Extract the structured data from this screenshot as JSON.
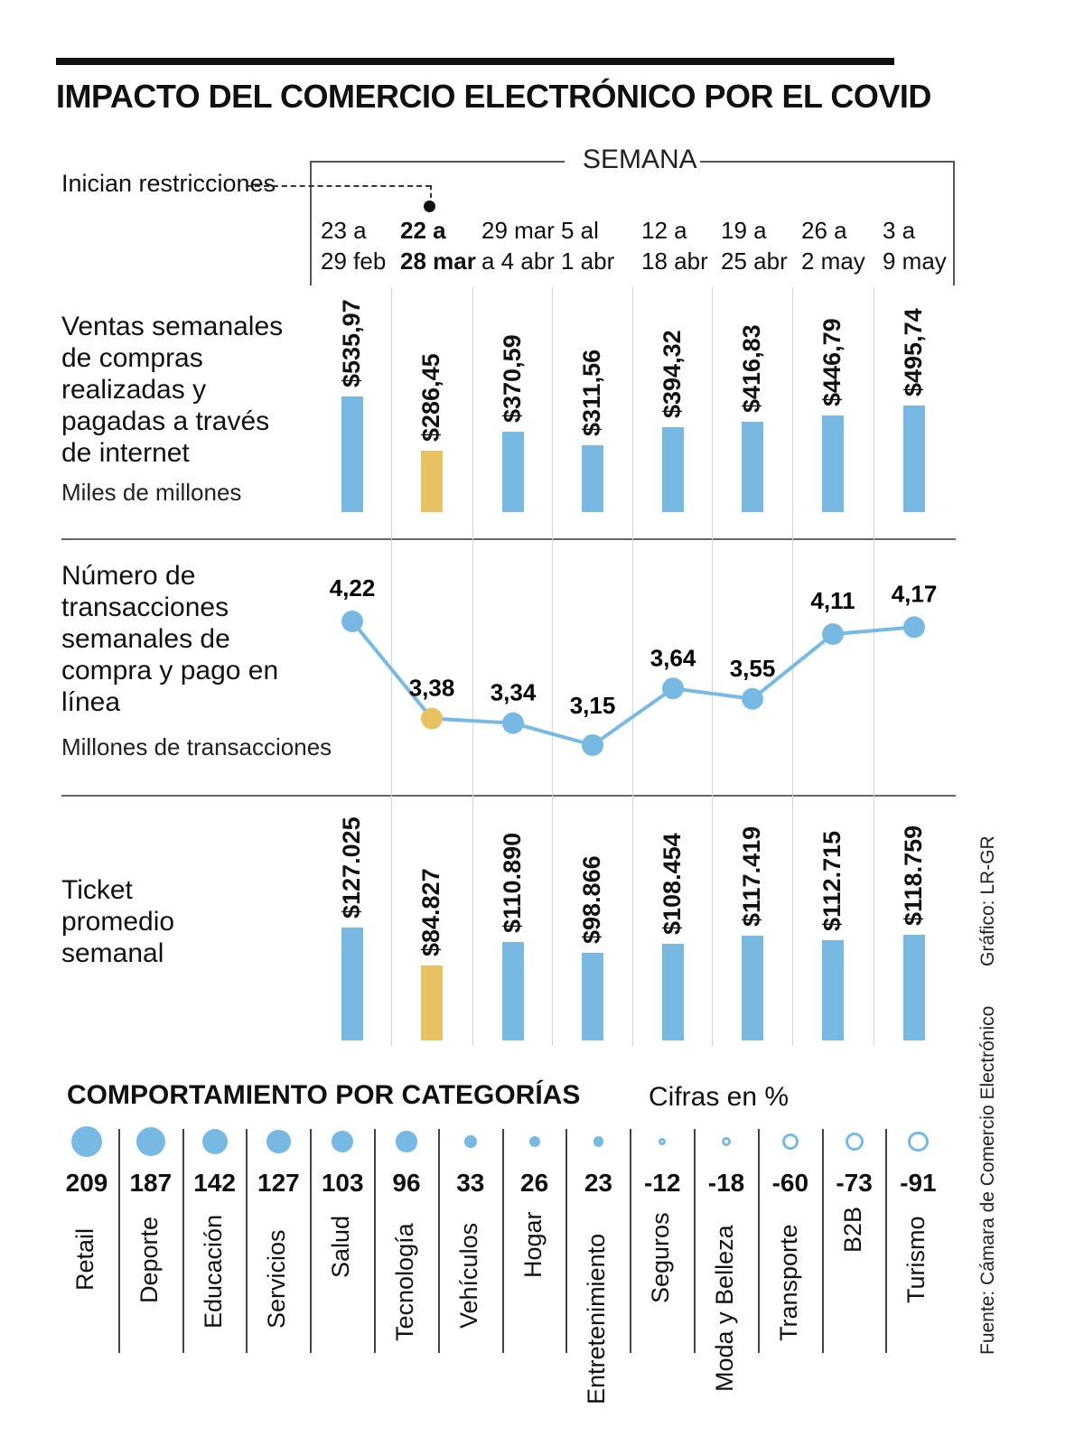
{
  "title": "IMPACTO DEL COMERCIO ELECTRÓNICO POR EL COVID",
  "semana_label": "SEMANA",
  "restrictions_label": "Inician restricciones",
  "weeks": [
    [
      "23 a",
      "29 feb"
    ],
    [
      "22 a",
      "28 mar"
    ],
    [
      "29 mar",
      "a 4 abr"
    ],
    [
      "5 al",
      "1 abr"
    ],
    [
      "12 a",
      "18 abr"
    ],
    [
      "19 a",
      "25 abr"
    ],
    [
      "26 a",
      "2 may"
    ],
    [
      "3 a",
      "9 may"
    ]
  ],
  "colors": {
    "blue": "#78b9e4",
    "yellow": "#e8c262",
    "highlight_index": 1
  },
  "chart_data": [
    {
      "type": "bar",
      "title": "Ventas semanales de compras realizadas y pagadas a través de internet",
      "unit": "Miles de millones",
      "categories": [
        "23 a 29 feb",
        "22 a 28 mar",
        "29 mar a 4 abr",
        "5 al 1 abr",
        "12 a 18 abr",
        "19 a 25 abr",
        "26 a 2 may",
        "3 a 9 may"
      ],
      "values": [
        535.97,
        286.45,
        370.59,
        311.56,
        394.32,
        416.83,
        446.79,
        495.74
      ],
      "labels": [
        "$535,97",
        "$286,45",
        "$370,59",
        "$311,56",
        "$394,32",
        "$416,83",
        "$446,79",
        "$495,74"
      ]
    },
    {
      "type": "line",
      "title": "Número de transacciones semanales de compra y pago en línea",
      "unit": "Millones de transacciones",
      "categories": [
        "23 a 29 feb",
        "22 a 28 mar",
        "29 mar a 4 abr",
        "5 al 1 abr",
        "12 a 18 abr",
        "19 a 25 abr",
        "26 a 2 may",
        "3 a 9 may"
      ],
      "values": [
        4.22,
        3.38,
        3.34,
        3.15,
        3.64,
        3.55,
        4.11,
        4.17
      ],
      "labels": [
        "4,22",
        "3,38",
        "3,34",
        "3,15",
        "3,64",
        "3,55",
        "4,11",
        "4,17"
      ]
    },
    {
      "type": "bar",
      "title": "Ticket promedio semanal",
      "categories": [
        "23 a 29 feb",
        "22 a 28 mar",
        "29 mar a 4 abr",
        "5 al 1 abr",
        "12 a 18 abr",
        "19 a 25 abr",
        "26 a 2 may",
        "3 a 9 may"
      ],
      "values": [
        127025,
        84827,
        110890,
        98866,
        108454,
        117419,
        112715,
        118759
      ],
      "labels": [
        "$127.025",
        "$84.827",
        "$110.890",
        "$98.866",
        "$108.454",
        "$117.419",
        "$112.715",
        "$118.759"
      ]
    },
    {
      "type": "bubble",
      "title": "COMPORTAMIENTO POR CATEGORÍAS",
      "subtitle": "Cifras en %",
      "categories": [
        "Retail",
        "Deporte",
        "Educación",
        "Servicios",
        "Salud",
        "Tecnología",
        "Vehículos",
        "Hogar",
        "Entretenimiento",
        "Seguros",
        "Moda y Belleza",
        "Transporte",
        "B2B",
        "Turismo"
      ],
      "values": [
        209,
        187,
        142,
        127,
        103,
        96,
        33,
        26,
        23,
        -12,
        -18,
        -60,
        -73,
        -91
      ]
    }
  ],
  "row_labels": {
    "sales": [
      "Ventas semanales",
      "de compras",
      "realizadas y",
      "pagadas a través",
      "de internet"
    ],
    "sales_unit": "Miles de millones",
    "tx": [
      "Número de",
      "transacciones",
      "semanales de",
      "compra y pago en",
      "línea"
    ],
    "tx_unit": "Millones de transacciones",
    "ticket": [
      "Ticket",
      "promedio",
      "semanal"
    ]
  },
  "credit": "Gráfico: LR-GR",
  "source": "Fuente: Cámara de Comercio Electrónico"
}
